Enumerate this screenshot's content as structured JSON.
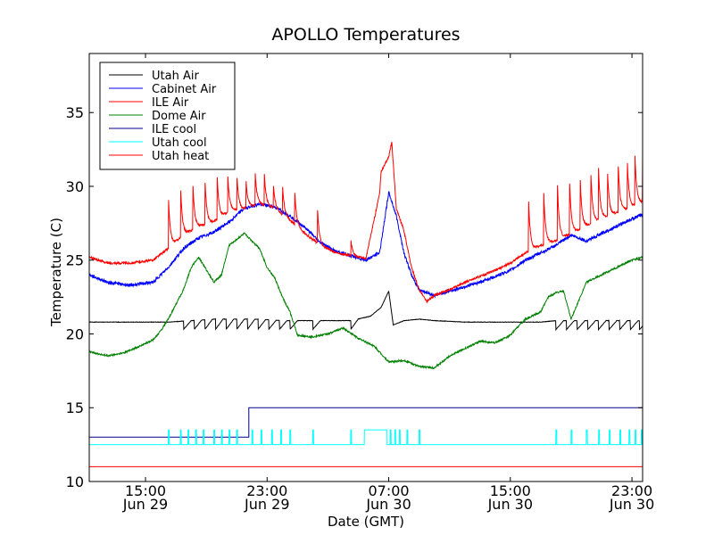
{
  "chart_data": {
    "type": "line",
    "title": "APOLLO Temperatures",
    "xlabel": "Date (GMT)",
    "ylabel": "Temperature (C)",
    "x_unit": "hours since Jun 29 00:00 GMT",
    "xlim": [
      11.3,
      47.7
    ],
    "ylim": [
      10,
      39
    ],
    "grid": false,
    "legend_position": "top-left",
    "x_ticks": [
      {
        "x": 15,
        "line1": "15:00",
        "line2": "Jun 29"
      },
      {
        "x": 23,
        "line1": "23:00",
        "line2": "Jun 29"
      },
      {
        "x": 31,
        "line1": "07:00",
        "line2": "Jun 30"
      },
      {
        "x": 39,
        "line1": "15:00",
        "line2": "Jun 30"
      },
      {
        "x": 47,
        "line1": "23:00",
        "line2": "Jun 30"
      }
    ],
    "y_ticks": [
      10,
      15,
      20,
      25,
      30,
      35
    ],
    "series": [
      {
        "name": "Utah Air",
        "color": "#000000",
        "x": [
          11.3,
          16.5,
          18,
          19.5,
          21,
          22.5,
          24,
          25.5,
          27,
          28.5,
          29.8,
          30.5,
          31,
          31.3,
          32,
          33,
          34,
          36,
          38,
          40,
          41,
          42,
          43,
          44,
          45,
          46,
          47,
          47.7
        ],
        "y": [
          20.8,
          20.8,
          20.9,
          21.0,
          21.0,
          21.0,
          20.9,
          20.9,
          20.9,
          20.9,
          21.2,
          21.8,
          22.9,
          20.6,
          20.9,
          21.0,
          20.9,
          20.8,
          20.8,
          20.8,
          20.8,
          20.9,
          20.9,
          20.9,
          20.9,
          20.9,
          20.9,
          20.9
        ]
      },
      {
        "name": "Cabinet Air",
        "color": "#0000ff",
        "x": [
          11.3,
          12.5,
          14,
          15.5,
          16.5,
          17.5,
          18.5,
          19.5,
          20.5,
          21.5,
          22.5,
          23.5,
          24.5,
          25.5,
          26.5,
          27.5,
          28.5,
          29.5,
          30.4,
          31,
          31.5,
          32,
          32.5,
          33,
          33.5,
          34,
          35,
          36,
          37,
          38,
          39,
          40,
          41,
          42,
          43,
          44,
          45,
          46,
          47,
          47.7
        ],
        "y": [
          24.0,
          23.5,
          23.3,
          23.5,
          24.5,
          25.8,
          26.5,
          26.9,
          27.6,
          28.5,
          28.8,
          28.6,
          28.0,
          27.2,
          26.2,
          25.6,
          25.3,
          25.0,
          25.5,
          29.6,
          28.0,
          25.5,
          24.0,
          23.0,
          22.8,
          22.6,
          22.9,
          23.2,
          23.5,
          23.9,
          24.3,
          25.0,
          25.5,
          26.0,
          26.7,
          26.3,
          26.8,
          27.3,
          27.8,
          28.1
        ]
      },
      {
        "name": "ILE Air",
        "color": "#ff0000",
        "x": [
          11.3,
          12.5,
          14,
          15.5,
          16.5,
          17.5,
          18.5,
          19.5,
          20.5,
          21.5,
          22.5,
          23.5,
          24.5,
          25.5,
          26.5,
          27.5,
          28.5,
          29.5,
          30.4,
          30.5,
          31,
          31.2,
          31.5,
          32,
          32.5,
          33,
          33.5,
          34,
          35,
          36,
          37,
          38,
          39,
          40,
          41,
          42,
          43,
          44,
          45,
          46,
          47,
          47.7
        ],
        "y": [
          25.2,
          24.8,
          24.8,
          25.0,
          25.8,
          26.7,
          27.3,
          27.6,
          28.3,
          28.5,
          28.8,
          28.5,
          27.7,
          26.8,
          26.0,
          25.5,
          25.3,
          25.1,
          29.5,
          31.0,
          32.0,
          33.0,
          28.5,
          27.0,
          24.5,
          23.0,
          22.2,
          22.6,
          23.0,
          23.5,
          23.9,
          24.3,
          24.8,
          25.5,
          26.0,
          26.3,
          26.8,
          27.3,
          27.8,
          28.2,
          28.6,
          28.9
        ]
      },
      {
        "name": "Dome Air",
        "color": "#008000",
        "x": [
          11.3,
          12.5,
          13.5,
          14.5,
          15.5,
          16,
          16.5,
          17.5,
          18,
          18.5,
          19.5,
          20,
          20.5,
          21.5,
          22.5,
          23,
          23.5,
          24,
          24.5,
          25,
          26,
          27,
          28,
          29,
          30,
          31,
          32,
          33,
          34,
          35,
          36,
          37,
          38,
          39,
          39.5,
          40,
          41,
          41.5,
          42,
          42.5,
          43,
          44,
          45,
          46,
          47,
          47.7
        ],
        "y": [
          18.8,
          18.5,
          18.7,
          19.1,
          19.6,
          20.2,
          21.0,
          23.0,
          24.5,
          25.2,
          23.5,
          24.0,
          26.0,
          26.8,
          25.8,
          24.5,
          23.8,
          22.5,
          21.5,
          19.9,
          19.8,
          20.0,
          20.4,
          19.7,
          19.2,
          18.1,
          18.2,
          17.8,
          17.7,
          18.5,
          19.0,
          19.5,
          19.4,
          19.9,
          20.5,
          21.0,
          21.5,
          22.5,
          22.8,
          22.9,
          21.0,
          23.5,
          24.0,
          24.5,
          25.0,
          25.2
        ]
      },
      {
        "name": "ILE cool",
        "color": "#00008b",
        "x": [
          11.3,
          21.8,
          21.8,
          47.7
        ],
        "y": [
          13.0,
          13.0,
          15.0,
          15.0
        ]
      },
      {
        "name": "Utah cool",
        "color": "#00ffff",
        "x": [
          11.3,
          16.4,
          29.4,
          29.4,
          30.9,
          30.9,
          47.7
        ],
        "y": [
          12.5,
          12.5,
          12.5,
          13.5,
          13.5,
          12.5,
          12.5
        ]
      },
      {
        "name": "Utah heat",
        "color": "#ff0000",
        "x": [
          11.3,
          47.7
        ],
        "y": [
          11.0,
          11.0
        ]
      }
    ],
    "spikes": [
      {
        "series": "ILE Air",
        "x": [
          16.5,
          17.3,
          18.1,
          18.9,
          19.7,
          20.4,
          21.0,
          21.6,
          22.2,
          22.8,
          23.4,
          24.0,
          24.8,
          26.3,
          28.5,
          40.2,
          41.2,
          42.1,
          42.9,
          43.6,
          44.3,
          44.8,
          45.4,
          46.1,
          46.7,
          47.2,
          47.7
        ],
        "peak": [
          29.6,
          30.2,
          30.6,
          30.8,
          31.1,
          31.0,
          31.0,
          30.6,
          31.2,
          31.2,
          30.2,
          30.3,
          30.0,
          28.8,
          26.5,
          29.0,
          29.5,
          30.0,
          30.2,
          30.4,
          30.8,
          31.2,
          30.8,
          31.4,
          31.5,
          32.0,
          32.1
        ]
      },
      {
        "series": "Utah cool",
        "x": [
          16.5,
          17.3,
          17.8,
          18.3,
          18.8,
          19.5,
          20.0,
          20.5,
          21.0,
          22.0,
          22.6,
          23.3,
          23.9,
          24.5,
          26.0,
          28.5,
          31.1,
          31.4,
          31.7,
          32.2,
          33.0,
          42.0,
          43.0,
          44.0,
          44.8,
          45.5,
          46.2,
          46.8,
          47.2,
          47.6
        ],
        "peak": 13.5
      },
      {
        "series": "Utah Air",
        "x": [
          17.5,
          18.2,
          18.9,
          19.6,
          20.3,
          21.0,
          21.7,
          22.4,
          23.1,
          23.8,
          24.5,
          26.0,
          28.5,
          42.0,
          42.7,
          43.4,
          44.1,
          44.8,
          45.5,
          46.2,
          46.9,
          47.5
        ],
        "dip": 20.3
      }
    ]
  }
}
